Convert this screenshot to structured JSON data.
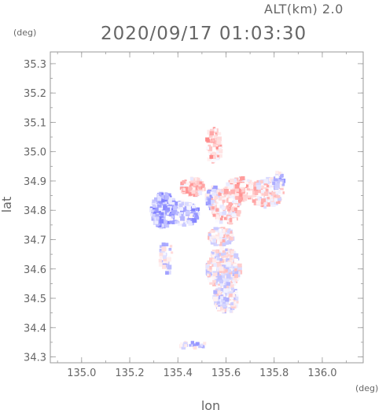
{
  "header": {
    "alt_label": "ALT(km) 2.0",
    "timestamp": "2020/09/17 01:03:30"
  },
  "chart_data": {
    "type": "heatmap",
    "title": "2020/09/17 01:03:30",
    "subtitle": "ALT(km) 2.0",
    "xlabel": "lon",
    "ylabel": "lat",
    "x_unit": "(deg)",
    "y_unit": "(deg)",
    "xlim": [
      134.87,
      136.17
    ],
    "ylim": [
      34.28,
      35.34
    ],
    "x_ticks": [
      135.0,
      135.2,
      135.4,
      135.6,
      135.8,
      136.0
    ],
    "x_tick_labels": [
      "135.0",
      "135.2",
      "135.4",
      "135.6",
      "135.8",
      "136.0"
    ],
    "y_ticks": [
      34.3,
      34.4,
      34.5,
      34.6,
      34.7,
      34.8,
      34.9,
      35.0,
      35.1,
      35.2,
      35.3
    ],
    "y_tick_labels": [
      "34.3",
      "34.4",
      "34.5",
      "34.6",
      "34.7",
      "34.8",
      "34.9",
      "35.0",
      "35.1",
      "35.2",
      "35.3"
    ],
    "grid": true,
    "colors": {
      "blue_strong": "#7f7fff",
      "blue_light": "#dcdcff",
      "red_strong": "#ff7f7f",
      "red_light": "#ffd8d8",
      "axis": "#999999",
      "text": "#666666"
    },
    "blobs": [
      {
        "lon": 135.34,
        "lat": 34.8,
        "rlon": 0.05,
        "rlat": 0.06,
        "n": 260,
        "v": -0.6
      },
      {
        "lon": 135.42,
        "lat": 34.79,
        "rlon": 0.07,
        "rlat": 0.04,
        "n": 200,
        "v": -0.45
      },
      {
        "lon": 135.55,
        "lat": 34.84,
        "rlon": 0.03,
        "rlat": 0.04,
        "n": 90,
        "v": -0.3
      },
      {
        "lon": 135.46,
        "lat": 34.88,
        "rlon": 0.05,
        "rlat": 0.03,
        "n": 80,
        "v": 0.3
      },
      {
        "lon": 135.6,
        "lat": 34.81,
        "rlon": 0.06,
        "rlat": 0.06,
        "n": 160,
        "v": 0.25
      },
      {
        "lon": 135.66,
        "lat": 34.87,
        "rlon": 0.06,
        "rlat": 0.04,
        "n": 140,
        "v": 0.35
      },
      {
        "lon": 135.77,
        "lat": 34.86,
        "rlon": 0.07,
        "rlat": 0.05,
        "n": 140,
        "v": 0.2
      },
      {
        "lon": 135.55,
        "lat": 35.02,
        "rlon": 0.035,
        "rlat": 0.06,
        "n": 60,
        "v": 0.4
      },
      {
        "lon": 135.58,
        "lat": 34.71,
        "rlon": 0.05,
        "rlat": 0.03,
        "n": 120,
        "v": 0.1
      },
      {
        "lon": 135.59,
        "lat": 34.6,
        "rlon": 0.07,
        "rlat": 0.07,
        "n": 320,
        "v": 0.0
      },
      {
        "lon": 135.6,
        "lat": 34.5,
        "rlon": 0.05,
        "rlat": 0.05,
        "n": 150,
        "v": -0.1
      },
      {
        "lon": 135.35,
        "lat": 34.64,
        "rlon": 0.03,
        "rlat": 0.06,
        "n": 40,
        "v": -0.2
      },
      {
        "lon": 135.46,
        "lat": 34.34,
        "rlon": 0.06,
        "rlat": 0.012,
        "n": 30,
        "v": -0.3
      },
      {
        "lon": 135.82,
        "lat": 34.9,
        "rlon": 0.025,
        "rlat": 0.03,
        "n": 40,
        "v": -0.3
      }
    ]
  }
}
